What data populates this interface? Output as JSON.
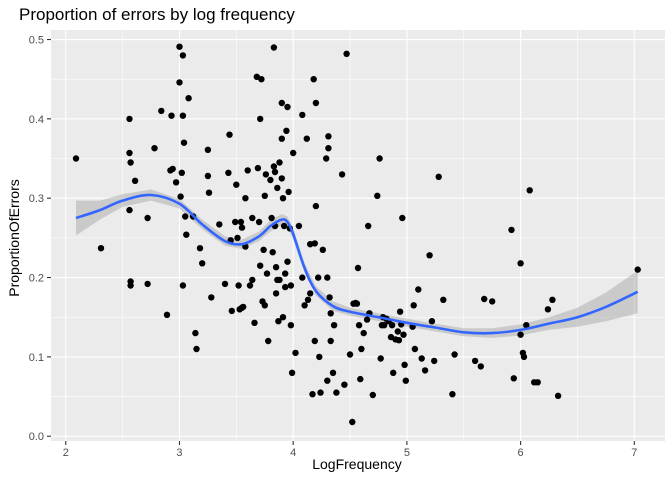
{
  "chart_data": {
    "type": "scatter",
    "title": "Proportion of errors by log frequency",
    "xlabel": "LogFrequency",
    "ylabel": "ProportionOfErrors",
    "xlim": [
      1.87,
      7.27
    ],
    "ylim": [
      -0.006,
      0.512
    ],
    "x_ticks": [
      2,
      3,
      4,
      5,
      6,
      7
    ],
    "y_ticks": [
      0.0,
      0.1,
      0.2,
      0.3,
      0.4,
      0.5
    ],
    "x_tick_labels": [
      "2",
      "3",
      "4",
      "5",
      "6",
      "7"
    ],
    "y_tick_labels": [
      "0.0",
      "0.1",
      "0.2",
      "0.3",
      "0.4",
      "0.5"
    ],
    "grid": true,
    "legend": "none",
    "colors": {
      "panel": "#ebebeb",
      "grid_major": "#ffffff",
      "points": "#000000",
      "smooth_line": "#3366ff",
      "ribbon": "#999999"
    },
    "points": [
      [
        2.09,
        0.35
      ],
      [
        2.31,
        0.237
      ],
      [
        2.56,
        0.4
      ],
      [
        2.56,
        0.357
      ],
      [
        2.57,
        0.345
      ],
      [
        2.56,
        0.285
      ],
      [
        2.57,
        0.195
      ],
      [
        2.57,
        0.19
      ],
      [
        2.61,
        0.322
      ],
      [
        2.72,
        0.275
      ],
      [
        2.72,
        0.192
      ],
      [
        2.78,
        0.363
      ],
      [
        2.84,
        0.41
      ],
      [
        2.89,
        0.153
      ],
      [
        2.92,
        0.335
      ],
      [
        2.93,
        0.404
      ],
      [
        2.94,
        0.337
      ],
      [
        2.97,
        0.32
      ],
      [
        3.0,
        0.491
      ],
      [
        3.0,
        0.446
      ],
      [
        3.01,
        0.302
      ],
      [
        3.02,
        0.332
      ],
      [
        3.03,
        0.48
      ],
      [
        3.03,
        0.404
      ],
      [
        3.04,
        0.37
      ],
      [
        3.05,
        0.277
      ],
      [
        3.06,
        0.254
      ],
      [
        3.03,
        0.19
      ],
      [
        3.08,
        0.426
      ],
      [
        3.12,
        0.277
      ],
      [
        3.14,
        0.13
      ],
      [
        3.15,
        0.11
      ],
      [
        3.18,
        0.237
      ],
      [
        3.2,
        0.218
      ],
      [
        3.25,
        0.361
      ],
      [
        3.25,
        0.328
      ],
      [
        3.26,
        0.307
      ],
      [
        3.28,
        0.175
      ],
      [
        3.35,
        0.267
      ],
      [
        3.4,
        0.192
      ],
      [
        3.43,
        0.332
      ],
      [
        3.44,
        0.38
      ],
      [
        3.45,
        0.247
      ],
      [
        3.46,
        0.158
      ],
      [
        3.49,
        0.27
      ],
      [
        3.5,
        0.317
      ],
      [
        3.51,
        0.25
      ],
      [
        3.52,
        0.19
      ],
      [
        3.53,
        0.16
      ],
      [
        3.54,
        0.27
      ],
      [
        3.55,
        0.263
      ],
      [
        3.55,
        0.162
      ],
      [
        3.56,
        0.163
      ],
      [
        3.58,
        0.3
      ],
      [
        3.58,
        0.239
      ],
      [
        3.6,
        0.335
      ],
      [
        3.62,
        0.19
      ],
      [
        3.64,
        0.275
      ],
      [
        3.64,
        0.197
      ],
      [
        3.66,
        0.143
      ],
      [
        3.68,
        0.453
      ],
      [
        3.69,
        0.338
      ],
      [
        3.7,
        0.27
      ],
      [
        3.71,
        0.215
      ],
      [
        3.71,
        0.4
      ],
      [
        3.72,
        0.45
      ],
      [
        3.73,
        0.17
      ],
      [
        3.74,
        0.235
      ],
      [
        3.75,
        0.303
      ],
      [
        3.75,
        0.165
      ],
      [
        3.76,
        0.33
      ],
      [
        3.77,
        0.205
      ],
      [
        3.78,
        0.12
      ],
      [
        3.8,
        0.323
      ],
      [
        3.81,
        0.275
      ],
      [
        3.82,
        0.232
      ],
      [
        3.83,
        0.49
      ],
      [
        3.83,
        0.34
      ],
      [
        3.84,
        0.333
      ],
      [
        3.84,
        0.265
      ],
      [
        3.85,
        0.213
      ],
      [
        3.85,
        0.18
      ],
      [
        3.86,
        0.313
      ],
      [
        3.86,
        0.197
      ],
      [
        3.87,
        0.145
      ],
      [
        3.88,
        0.197
      ],
      [
        3.88,
        0.345
      ],
      [
        3.9,
        0.42
      ],
      [
        3.9,
        0.375
      ],
      [
        3.9,
        0.325
      ],
      [
        3.91,
        0.3
      ],
      [
        3.91,
        0.15
      ],
      [
        3.92,
        0.265
      ],
      [
        3.93,
        0.205
      ],
      [
        3.93,
        0.188
      ],
      [
        3.94,
        0.385
      ],
      [
        3.95,
        0.22
      ],
      [
        3.95,
        0.415
      ],
      [
        3.96,
        0.308
      ],
      [
        3.97,
        0.262
      ],
      [
        3.98,
        0.19
      ],
      [
        3.98,
        0.14
      ],
      [
        3.99,
        0.08
      ],
      [
        4.0,
        0.357
      ],
      [
        4.02,
        0.105
      ],
      [
        4.05,
        0.265
      ],
      [
        4.08,
        0.405
      ],
      [
        4.08,
        0.2
      ],
      [
        4.1,
        0.165
      ],
      [
        4.12,
        0.375
      ],
      [
        4.13,
        0.172
      ],
      [
        4.15,
        0.242
      ],
      [
        4.15,
        0.18
      ],
      [
        4.17,
        0.053
      ],
      [
        4.18,
        0.45
      ],
      [
        4.19,
        0.243
      ],
      [
        4.19,
        0.12
      ],
      [
        4.2,
        0.42
      ],
      [
        4.2,
        0.29
      ],
      [
        4.22,
        0.2
      ],
      [
        4.23,
        0.1
      ],
      [
        4.24,
        0.055
      ],
      [
        4.26,
        0.235
      ],
      [
        4.29,
        0.35
      ],
      [
        4.3,
        0.2
      ],
      [
        4.3,
        0.07
      ],
      [
        4.31,
        0.378
      ],
      [
        4.31,
        0.363
      ],
      [
        4.32,
        0.175
      ],
      [
        4.33,
        0.12
      ],
      [
        4.33,
        0.155
      ],
      [
        4.35,
        0.08
      ],
      [
        4.36,
        0.14
      ],
      [
        4.38,
        0.055
      ],
      [
        4.43,
        0.33
      ],
      [
        4.45,
        0.065
      ],
      [
        4.47,
        0.482
      ],
      [
        4.5,
        0.103
      ],
      [
        4.52,
        0.018
      ],
      [
        4.53,
        0.167
      ],
      [
        4.55,
        0.168
      ],
      [
        4.56,
        0.167
      ],
      [
        4.57,
        0.212
      ],
      [
        4.58,
        0.14
      ],
      [
        4.59,
        0.072
      ],
      [
        4.6,
        0.11
      ],
      [
        4.62,
        0.13
      ],
      [
        4.65,
        0.147
      ],
      [
        4.66,
        0.265
      ],
      [
        4.67,
        0.155
      ],
      [
        4.7,
        0.052
      ],
      [
        4.74,
        0.303
      ],
      [
        4.76,
        0.35
      ],
      [
        4.77,
        0.098
      ],
      [
        4.78,
        0.14
      ],
      [
        4.79,
        0.15
      ],
      [
        4.8,
        0.14
      ],
      [
        4.82,
        0.148
      ],
      [
        4.84,
        0.145
      ],
      [
        4.86,
        0.125
      ],
      [
        4.87,
        0.14
      ],
      [
        4.88,
        0.08
      ],
      [
        4.9,
        0.122
      ],
      [
        4.92,
        0.132
      ],
      [
        4.93,
        0.121
      ],
      [
        4.94,
        0.157
      ],
      [
        4.95,
        0.141
      ],
      [
        4.96,
        0.275
      ],
      [
        4.97,
        0.128
      ],
      [
        4.98,
        0.09
      ],
      [
        4.99,
        0.07
      ],
      [
        5.05,
        0.138
      ],
      [
        5.06,
        0.165
      ],
      [
        5.07,
        0.11
      ],
      [
        5.1,
        0.185
      ],
      [
        5.13,
        0.098
      ],
      [
        5.16,
        0.083
      ],
      [
        5.2,
        0.228
      ],
      [
        5.22,
        0.145
      ],
      [
        5.24,
        0.095
      ],
      [
        5.28,
        0.327
      ],
      [
        5.32,
        0.172
      ],
      [
        5.4,
        0.053
      ],
      [
        5.42,
        0.103
      ],
      [
        5.6,
        0.095
      ],
      [
        5.65,
        0.088
      ],
      [
        5.68,
        0.173
      ],
      [
        5.75,
        0.17
      ],
      [
        5.92,
        0.26
      ],
      [
        5.94,
        0.073
      ],
      [
        6.0,
        0.218
      ],
      [
        6.0,
        0.128
      ],
      [
        6.02,
        0.105
      ],
      [
        6.03,
        0.1
      ],
      [
        6.05,
        0.14
      ],
      [
        6.08,
        0.31
      ],
      [
        6.12,
        0.068
      ],
      [
        6.15,
        0.068
      ],
      [
        6.24,
        0.16
      ],
      [
        6.28,
        0.172
      ],
      [
        6.33,
        0.051
      ],
      [
        7.03,
        0.21
      ]
    ],
    "smooth": {
      "method": "loess",
      "x": [
        2.09,
        2.3,
        2.5,
        2.75,
        3.0,
        3.2,
        3.4,
        3.55,
        3.7,
        3.8,
        3.9,
        3.95,
        4.0,
        4.1,
        4.2,
        4.35,
        4.5,
        4.75,
        5.0,
        5.25,
        5.5,
        5.75,
        6.0,
        6.25,
        6.5,
        6.75,
        7.03
      ],
      "y": [
        0.275,
        0.285,
        0.297,
        0.304,
        0.293,
        0.267,
        0.246,
        0.242,
        0.252,
        0.265,
        0.273,
        0.27,
        0.255,
        0.212,
        0.183,
        0.164,
        0.157,
        0.15,
        0.143,
        0.137,
        0.131,
        0.13,
        0.134,
        0.142,
        0.15,
        0.163,
        0.182
      ],
      "lo": [
        0.253,
        0.273,
        0.289,
        0.297,
        0.287,
        0.261,
        0.24,
        0.236,
        0.246,
        0.258,
        0.266,
        0.263,
        0.248,
        0.206,
        0.177,
        0.158,
        0.152,
        0.145,
        0.138,
        0.132,
        0.126,
        0.124,
        0.127,
        0.134,
        0.138,
        0.145,
        0.155
      ],
      "hi": [
        0.297,
        0.297,
        0.305,
        0.311,
        0.299,
        0.273,
        0.252,
        0.248,
        0.258,
        0.272,
        0.28,
        0.277,
        0.262,
        0.218,
        0.189,
        0.17,
        0.162,
        0.155,
        0.148,
        0.142,
        0.136,
        0.136,
        0.141,
        0.15,
        0.162,
        0.181,
        0.209
      ]
    }
  }
}
